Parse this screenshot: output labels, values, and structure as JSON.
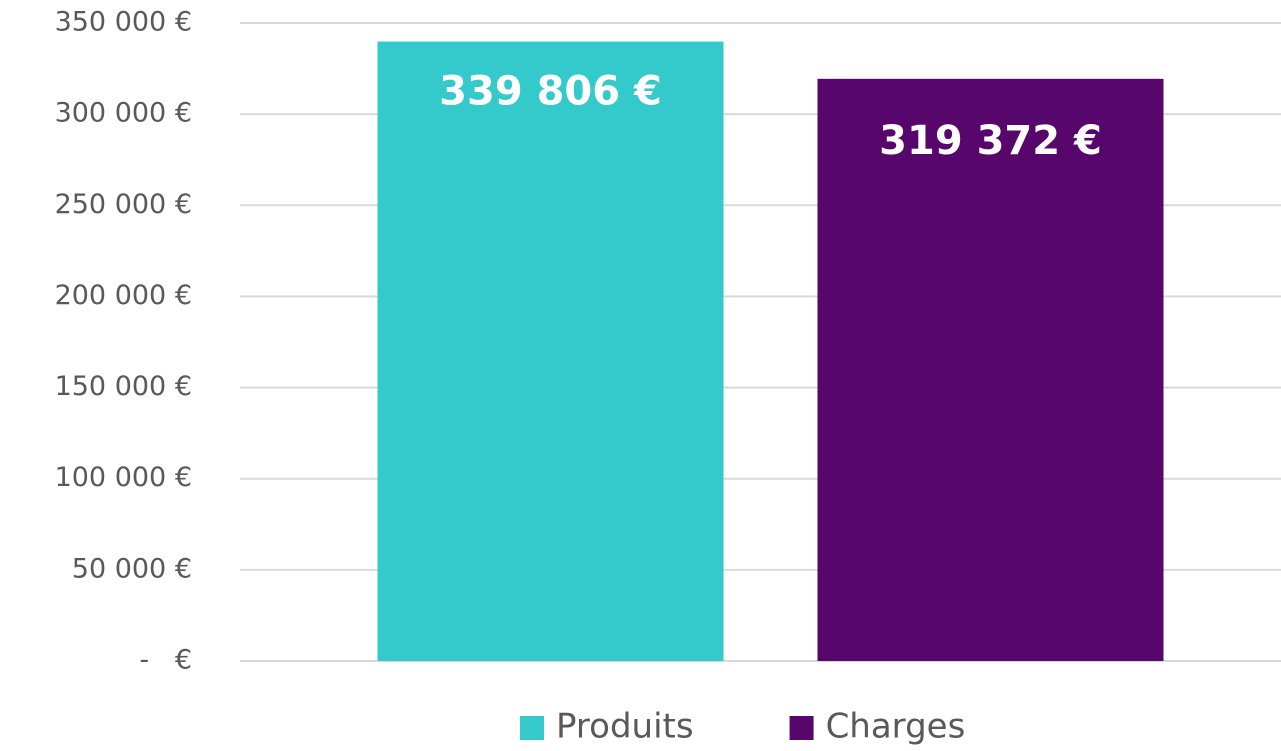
{
  "chart_data": {
    "type": "bar",
    "categories": [
      null
    ],
    "series": [
      {
        "name": "Produits",
        "color": "#34cacb",
        "values": [
          339806
        ],
        "value_labels": [
          "339 806 €"
        ]
      },
      {
        "name": "Charges",
        "color": "#57066b",
        "values": [
          319372
        ],
        "value_labels": [
          "319 372 €"
        ]
      }
    ],
    "ylim": [
      0,
      350000
    ],
    "yticks": [
      {
        "value": 0,
        "label": "-   €"
      },
      {
        "value": 50000,
        "label": "50 000 €"
      },
      {
        "value": 100000,
        "label": "100 000 €"
      },
      {
        "value": 150000,
        "label": "150 000 €"
      },
      {
        "value": 200000,
        "label": "200 000 €"
      },
      {
        "value": 250000,
        "label": "250 000 €"
      },
      {
        "value": 300000,
        "label": "300 000 €"
      },
      {
        "value": 350000,
        "label": "350 000 €"
      }
    ],
    "grid": true,
    "legend": "bottom"
  }
}
